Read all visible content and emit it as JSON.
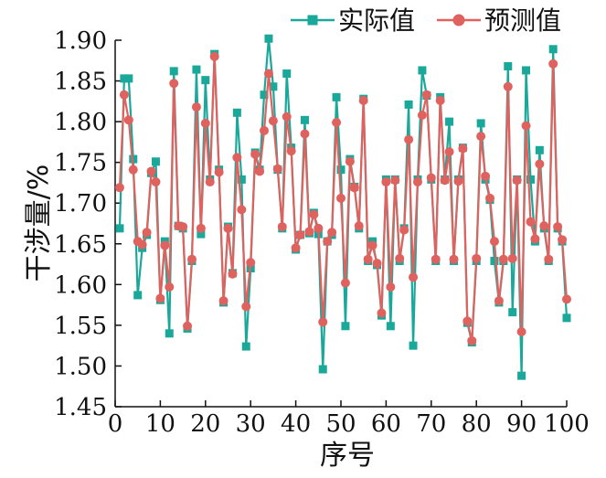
{
  "chart_data": {
    "type": "line",
    "xlabel": "序号",
    "ylabel": "干涉量/%",
    "xlim": [
      0,
      100
    ],
    "ylim": [
      1.45,
      1.9
    ],
    "x_ticks": [
      "0",
      "10",
      "20",
      "30",
      "40",
      "50",
      "60",
      "70",
      "80",
      "90",
      "100"
    ],
    "y_ticks": [
      "1.45",
      "1.50",
      "1.55",
      "1.60",
      "1.65",
      "1.70",
      "1.75",
      "1.80",
      "1.85",
      "1.90"
    ],
    "grid": false,
    "legend_position": "top-right",
    "series": [
      {
        "name": "实际值",
        "color": "#1aa89a",
        "marker": "square",
        "values": [
          1.669,
          1.853,
          1.853,
          1.754,
          1.587,
          1.645,
          1.661,
          1.737,
          1.751,
          1.581,
          1.653,
          1.54,
          1.862,
          1.672,
          1.669,
          1.546,
          1.629,
          1.864,
          1.662,
          1.851,
          1.729,
          1.883,
          1.741,
          1.578,
          1.671,
          1.614,
          1.811,
          1.729,
          1.524,
          1.62,
          1.762,
          1.741,
          1.833,
          1.902,
          1.843,
          1.741,
          1.669,
          1.859,
          1.768,
          1.643,
          1.661,
          1.802,
          1.663,
          1.688,
          1.662,
          1.496,
          1.653,
          1.661,
          1.83,
          1.741,
          1.549,
          1.754,
          1.72,
          1.669,
          1.828,
          1.629,
          1.653,
          1.624,
          1.562,
          1.729,
          1.549,
          1.729,
          1.629,
          1.669,
          1.821,
          1.525,
          1.729,
          1.863,
          1.832,
          1.729,
          1.629,
          1.83,
          1.729,
          1.8,
          1.629,
          1.729,
          1.768,
          1.553,
          1.529,
          1.629,
          1.798,
          1.729,
          1.704,
          1.629,
          1.578,
          1.629,
          1.868,
          1.566,
          1.729,
          1.488,
          1.863,
          1.729,
          1.653,
          1.765,
          1.669,
          1.629,
          1.889,
          1.669,
          1.653,
          1.559
        ]
      },
      {
        "name": "预测值",
        "color": "#e0625f",
        "marker": "circle",
        "values": [
          1.719,
          1.833,
          1.802,
          1.741,
          1.653,
          1.649,
          1.664,
          1.739,
          1.726,
          1.583,
          1.648,
          1.597,
          1.847,
          1.672,
          1.671,
          1.549,
          1.631,
          1.818,
          1.669,
          1.798,
          1.726,
          1.88,
          1.738,
          1.58,
          1.669,
          1.613,
          1.756,
          1.692,
          1.573,
          1.627,
          1.76,
          1.739,
          1.789,
          1.859,
          1.801,
          1.742,
          1.671,
          1.806,
          1.764,
          1.645,
          1.661,
          1.785,
          1.665,
          1.686,
          1.669,
          1.554,
          1.653,
          1.664,
          1.799,
          1.706,
          1.602,
          1.751,
          1.719,
          1.672,
          1.826,
          1.631,
          1.648,
          1.626,
          1.565,
          1.726,
          1.597,
          1.728,
          1.632,
          1.667,
          1.778,
          1.609,
          1.726,
          1.808,
          1.833,
          1.731,
          1.631,
          1.826,
          1.728,
          1.763,
          1.631,
          1.727,
          1.767,
          1.555,
          1.531,
          1.632,
          1.782,
          1.733,
          1.706,
          1.653,
          1.58,
          1.631,
          1.843,
          1.632,
          1.728,
          1.542,
          1.795,
          1.677,
          1.656,
          1.748,
          1.672,
          1.631,
          1.871,
          1.671,
          1.655,
          1.582
        ]
      }
    ]
  }
}
